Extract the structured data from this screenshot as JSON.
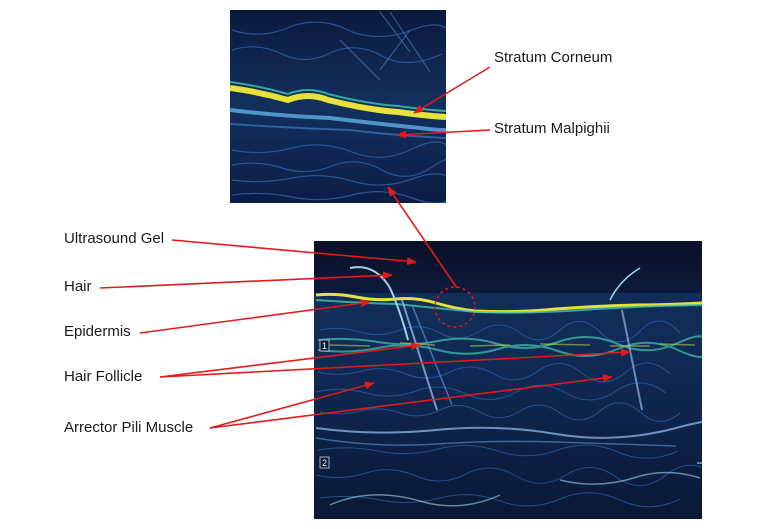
{
  "labels": {
    "stratum_corneum": "Stratum Corneum",
    "stratum_malpighii": "Stratum Malpighii",
    "ultrasound_gel": "Ultrasound Gel",
    "hair": "Hair",
    "epidermis": "Epidermis",
    "hair_follicle": "Hair Follicle",
    "arrector_pili_muscle": "Arrector Pili Muscle"
  },
  "depth_markers": {
    "m1": "1",
    "m2": "2"
  },
  "colors": {
    "arrow": "#e11a1a",
    "scan_background": "#0b1838",
    "echo_bright": "#e6e23a",
    "echo_mid": "#3fc8b0",
    "echo_dim": "#3a78c8"
  }
}
